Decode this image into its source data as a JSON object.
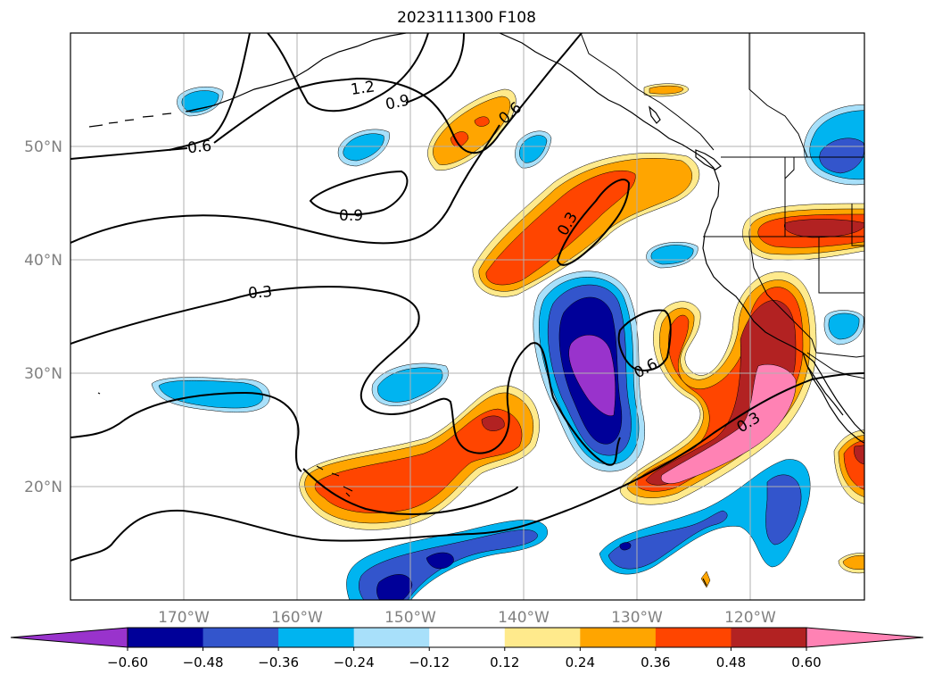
{
  "title": "2023111300 F108",
  "colors": {
    "coast": "#000000",
    "border": "#000000",
    "contour": "#000000",
    "grid": "#b0b0b0",
    "tick_label": "#808080"
  },
  "map": {
    "lon_range": [
      -180,
      -110
    ],
    "lat_range": [
      10,
      60
    ],
    "meridians": [
      -170,
      -160,
      -150,
      -140,
      -130,
      -120
    ],
    "parallels": [
      20,
      30,
      40,
      50
    ],
    "lon_labels": [
      "170°W",
      "160°W",
      "150°W",
      "140°W",
      "130°W",
      "120°W"
    ],
    "lat_labels": [
      "20°N",
      "30°N",
      "40°N",
      "50°N"
    ],
    "contour_labels": [
      "1.2",
      "0.9",
      "0.6",
      "0.6",
      "0.9",
      "0.3",
      "0.3",
      "0.6",
      "0.3"
    ]
  },
  "colorbar": {
    "levels": [
      "−0.60",
      "−0.48",
      "−0.36",
      "−0.24",
      "−0.12",
      "0.12",
      "0.24",
      "0.36",
      "0.48",
      "0.60"
    ],
    "colors": [
      "#9933cc",
      "#000099",
      "#3355cc",
      "#00b4f0",
      "#a8e0fa",
      "#ffffff",
      "#ffea8c",
      "#ffa500",
      "#ff4500",
      "#b22222",
      "#ff82b4"
    ],
    "extend": "both"
  }
}
